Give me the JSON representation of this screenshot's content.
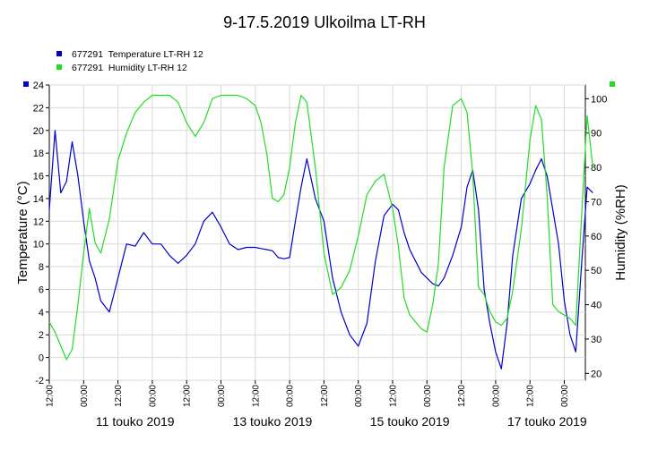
{
  "chart_data": {
    "type": "line",
    "title": "9-17.5.2019 Ulkoilma LT-RH",
    "ylabel": "Temperature (°C)",
    "y2label": "Humidity (%RH)",
    "ylim": [
      -2,
      24
    ],
    "y2lim": [
      18,
      104
    ],
    "yticks": [
      "24",
      "22",
      "20",
      "18",
      "16",
      "14",
      "12",
      "10",
      "8",
      "6",
      "4",
      "2",
      "0",
      "-2"
    ],
    "y2ticks": [
      "100",
      "90",
      "80",
      "70",
      "60",
      "50",
      "40",
      "30",
      "20"
    ],
    "grid": true,
    "legend_position": "top-left",
    "x_tick_labels": [
      "12:00",
      "00:00",
      "12:00",
      "00:00",
      "12:00",
      "00:00",
      "12:00",
      "00:00",
      "12:00",
      "00:00",
      "12:00",
      "00:00",
      "12:00",
      "00:00",
      "12:00",
      "00:00"
    ],
    "x_date_labels": [
      "11 touko 2019",
      "13 touko 2019",
      "15 touko 2019",
      "17 touko 2019"
    ],
    "series": [
      {
        "name": "677291  Temperature LT-RH 12",
        "color": "#0000cc",
        "axis": "left",
        "x": [
          "2019-05-09 12:00",
          "2019-05-09 14:00",
          "2019-05-09 16:00",
          "2019-05-09 18:00",
          "2019-05-09 20:00",
          "2019-05-09 22:00",
          "2019-05-10 00:00",
          "2019-05-10 02:00",
          "2019-05-10 04:00",
          "2019-05-10 06:00",
          "2019-05-10 09:00",
          "2019-05-10 12:00",
          "2019-05-10 15:00",
          "2019-05-10 18:00",
          "2019-05-10 21:00",
          "2019-05-11 00:00",
          "2019-05-11 03:00",
          "2019-05-11 06:00",
          "2019-05-11 09:00",
          "2019-05-11 12:00",
          "2019-05-11 15:00",
          "2019-05-11 18:00",
          "2019-05-11 21:00",
          "2019-05-12 00:00",
          "2019-05-12 03:00",
          "2019-05-12 06:00",
          "2019-05-12 09:00",
          "2019-05-12 12:00",
          "2019-05-12 14:00",
          "2019-05-12 16:00",
          "2019-05-12 18:00",
          "2019-05-12 20:00",
          "2019-05-12 22:00",
          "2019-05-13 00:00",
          "2019-05-13 02:00",
          "2019-05-13 04:00",
          "2019-05-13 06:00",
          "2019-05-13 09:00",
          "2019-05-13 12:00",
          "2019-05-13 15:00",
          "2019-05-13 18:00",
          "2019-05-13 21:00",
          "2019-05-14 00:00",
          "2019-05-14 03:00",
          "2019-05-14 06:00",
          "2019-05-14 09:00",
          "2019-05-14 12:00",
          "2019-05-14 14:00",
          "2019-05-14 16:00",
          "2019-05-14 18:00",
          "2019-05-14 20:00",
          "2019-05-14 22:00",
          "2019-05-15 00:00",
          "2019-05-15 02:00",
          "2019-05-15 04:00",
          "2019-05-15 06:00",
          "2019-05-15 09:00",
          "2019-05-15 12:00",
          "2019-05-15 14:00",
          "2019-05-15 16:00",
          "2019-05-15 18:00",
          "2019-05-15 20:00",
          "2019-05-15 22:00",
          "2019-05-16 00:00",
          "2019-05-16 02:00",
          "2019-05-16 04:00",
          "2019-05-16 06:00",
          "2019-05-16 09:00",
          "2019-05-16 12:00",
          "2019-05-16 14:00",
          "2019-05-16 16:00",
          "2019-05-16 18:00",
          "2019-05-16 20:00",
          "2019-05-16 22:00",
          "2019-05-17 00:00",
          "2019-05-17 02:00",
          "2019-05-17 04:00",
          "2019-05-17 06:00",
          "2019-05-17 08:00",
          "2019-05-17 10:00"
        ],
        "y": [
          13,
          20,
          14.5,
          15.5,
          19,
          16,
          12,
          8.5,
          7,
          5,
          4,
          7,
          10,
          9.8,
          11,
          10,
          10,
          9,
          8.3,
          9,
          10,
          12,
          12.8,
          11.5,
          10,
          9.5,
          9.7,
          9.7,
          9.6,
          9.5,
          9.4,
          8.8,
          8.7,
          8.8,
          12,
          15,
          17.5,
          14,
          12,
          7,
          4,
          2,
          1,
          3,
          8.5,
          12.5,
          13.5,
          13,
          11,
          9.5,
          8.5,
          7.5,
          7,
          6.5,
          6.3,
          7,
          9,
          11.5,
          15,
          16.5,
          13,
          6,
          3,
          0.5,
          -1,
          3,
          9,
          14,
          15.3,
          16.5,
          17.5,
          16,
          13,
          10,
          5,
          2,
          0.5,
          8,
          15,
          14.5
        ]
      },
      {
        "name": "677291  Humidity LT-RH 12",
        "color": "#22dd22",
        "axis": "right",
        "x": [
          "2019-05-09 12:00",
          "2019-05-09 14:00",
          "2019-05-09 16:00",
          "2019-05-09 18:00",
          "2019-05-09 20:00",
          "2019-05-09 22:00",
          "2019-05-10 00:00",
          "2019-05-10 02:00",
          "2019-05-10 04:00",
          "2019-05-10 06:00",
          "2019-05-10 09:00",
          "2019-05-10 12:00",
          "2019-05-10 15:00",
          "2019-05-10 18:00",
          "2019-05-10 21:00",
          "2019-05-11 00:00",
          "2019-05-11 03:00",
          "2019-05-11 06:00",
          "2019-05-11 09:00",
          "2019-05-11 12:00",
          "2019-05-11 15:00",
          "2019-05-11 18:00",
          "2019-05-11 21:00",
          "2019-05-12 00:00",
          "2019-05-12 03:00",
          "2019-05-12 06:00",
          "2019-05-12 09:00",
          "2019-05-12 12:00",
          "2019-05-12 14:00",
          "2019-05-12 16:00",
          "2019-05-12 18:00",
          "2019-05-12 20:00",
          "2019-05-12 22:00",
          "2019-05-13 00:00",
          "2019-05-13 02:00",
          "2019-05-13 04:00",
          "2019-05-13 06:00",
          "2019-05-13 09:00",
          "2019-05-13 12:00",
          "2019-05-13 15:00",
          "2019-05-13 18:00",
          "2019-05-13 21:00",
          "2019-05-14 00:00",
          "2019-05-14 03:00",
          "2019-05-14 06:00",
          "2019-05-14 09:00",
          "2019-05-14 12:00",
          "2019-05-14 14:00",
          "2019-05-14 16:00",
          "2019-05-14 18:00",
          "2019-05-14 20:00",
          "2019-05-14 22:00",
          "2019-05-15 00:00",
          "2019-05-15 02:00",
          "2019-05-15 04:00",
          "2019-05-15 06:00",
          "2019-05-15 09:00",
          "2019-05-15 12:00",
          "2019-05-15 14:00",
          "2019-05-15 16:00",
          "2019-05-15 18:00",
          "2019-05-15 20:00",
          "2019-05-15 22:00",
          "2019-05-16 00:00",
          "2019-05-16 02:00",
          "2019-05-16 04:00",
          "2019-05-16 06:00",
          "2019-05-16 09:00",
          "2019-05-16 12:00",
          "2019-05-16 14:00",
          "2019-05-16 16:00",
          "2019-05-16 18:00",
          "2019-05-16 20:00",
          "2019-05-16 22:00",
          "2019-05-17 00:00",
          "2019-05-17 02:00",
          "2019-05-17 04:00",
          "2019-05-17 06:00",
          "2019-05-17 08:00",
          "2019-05-17 10:00"
        ],
        "y": [
          35,
          32,
          28,
          24,
          27,
          40,
          55,
          68,
          58,
          55,
          65,
          82,
          90,
          96,
          99,
          101,
          101,
          101,
          99,
          93,
          89,
          93,
          100,
          101,
          101,
          101,
          100,
          98,
          93,
          84,
          71,
          70,
          72,
          80,
          93,
          101,
          99,
          80,
          55,
          43,
          45,
          50,
          60,
          72,
          76,
          78,
          68,
          57,
          42,
          37,
          35,
          33,
          32,
          40,
          52,
          80,
          98,
          100,
          96,
          78,
          45,
          43,
          38,
          35,
          34,
          36,
          44,
          62,
          88,
          98,
          94,
          72,
          40,
          38,
          37,
          36,
          34,
          65,
          95,
          80
        ]
      }
    ]
  }
}
